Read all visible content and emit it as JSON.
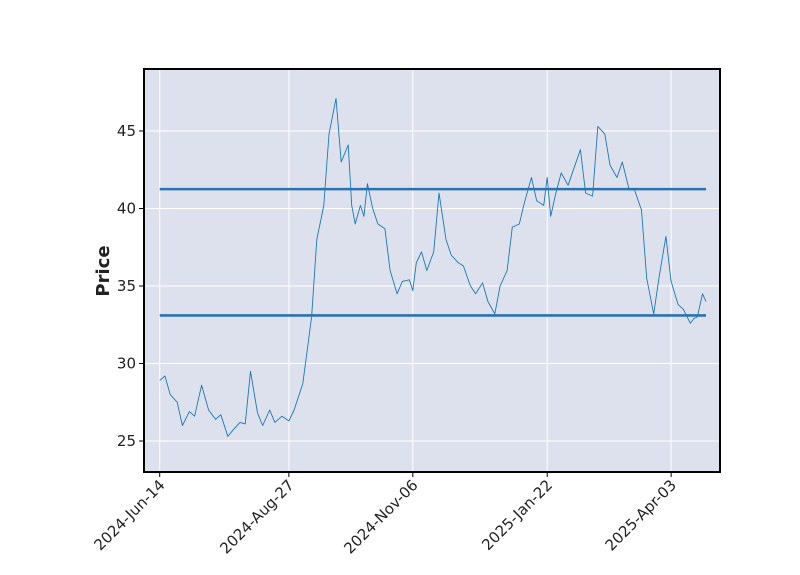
{
  "chart_data": {
    "type": "line",
    "title": "",
    "xlabel": "",
    "ylabel": "Price",
    "xlim": [
      "2024-06-05",
      "2025-05-01"
    ],
    "ylim": [
      23.0,
      49.0
    ],
    "x_ticks": [
      "2024-Jun-14",
      "2024-Aug-27",
      "2024-Nov-06",
      "2025-Jan-22",
      "2025-Apr-03"
    ],
    "y_ticks": [
      25,
      30,
      35,
      40,
      45
    ],
    "grid": true,
    "legend": "none",
    "colors": {
      "background": "#dce1ed",
      "grid": "#ffffff",
      "line": "#1f77b4",
      "hline": "#2c72b0"
    },
    "horizontal_lines": [
      {
        "y": 41.25,
        "x_start": "2024-06-14",
        "x_end": "2025-04-23"
      },
      {
        "y": 33.1,
        "x_start": "2024-06-14",
        "x_end": "2025-04-23"
      }
    ],
    "series": [
      {
        "x": [
          "2024-06-14",
          "2024-06-17",
          "2024-06-20",
          "2024-06-24",
          "2024-06-27",
          "2024-07-01",
          "2024-07-04",
          "2024-07-08",
          "2024-07-12",
          "2024-07-16",
          "2024-07-19",
          "2024-07-23",
          "2024-07-26",
          "2024-07-30",
          "2024-08-02",
          "2024-08-05",
          "2024-08-09",
          "2024-08-12",
          "2024-08-16",
          "2024-08-19",
          "2024-08-23",
          "2024-08-27",
          "2024-08-30",
          "2024-09-04",
          "2024-09-09",
          "2024-09-12",
          "2024-09-16",
          "2024-09-19",
          "2024-09-23",
          "2024-09-26",
          "2024-09-30",
          "2024-10-02",
          "2024-10-04",
          "2024-10-07",
          "2024-10-09",
          "2024-10-11",
          "2024-10-14",
          "2024-10-17",
          "2024-10-21",
          "2024-10-24",
          "2024-10-28",
          "2024-10-31",
          "2024-11-04",
          "2024-11-06",
          "2024-11-08",
          "2024-11-11",
          "2024-11-14",
          "2024-11-18",
          "2024-11-21",
          "2024-11-25",
          "2024-11-28",
          "2024-12-02",
          "2024-12-05",
          "2024-12-09",
          "2024-12-12",
          "2024-12-16",
          "2024-12-19",
          "2024-12-23",
          "2024-12-26",
          "2024-12-30",
          "2025-01-02",
          "2025-01-06",
          "2025-01-09",
          "2025-01-13",
          "2025-01-16",
          "2025-01-20",
          "2025-01-22",
          "2025-01-24",
          "2025-01-27",
          "2025-01-30",
          "2025-02-03",
          "2025-02-06",
          "2025-02-10",
          "2025-02-13",
          "2025-02-17",
          "2025-02-20",
          "2025-02-24",
          "2025-02-27",
          "2025-03-03",
          "2025-03-06",
          "2025-03-10",
          "2025-03-13",
          "2025-03-17",
          "2025-03-20",
          "2025-03-24",
          "2025-03-27",
          "2025-03-31",
          "2025-04-03",
          "2025-04-07",
          "2025-04-10",
          "2025-04-14",
          "2025-04-16",
          "2025-04-18",
          "2025-04-21",
          "2025-04-23"
        ],
        "y": [
          28.9,
          29.2,
          28.0,
          27.5,
          26.0,
          26.9,
          26.6,
          28.6,
          27.0,
          26.4,
          26.7,
          25.3,
          25.7,
          26.2,
          26.1,
          29.5,
          26.8,
          26.0,
          27.0,
          26.2,
          26.6,
          26.3,
          27.0,
          28.7,
          33.0,
          38.0,
          40.2,
          44.8,
          47.1,
          43.0,
          44.1,
          40.2,
          39.0,
          40.2,
          39.5,
          41.6,
          40.0,
          39.0,
          38.7,
          36.0,
          34.5,
          35.3,
          35.4,
          34.7,
          36.5,
          37.2,
          36.0,
          37.2,
          41.0,
          38.0,
          37.0,
          36.5,
          36.3,
          35.0,
          34.5,
          35.2,
          34.0,
          33.2,
          35.0,
          36.0,
          38.8,
          39.0,
          40.4,
          42.0,
          40.5,
          40.2,
          42.0,
          39.5,
          41.0,
          42.3,
          41.5,
          42.5,
          43.8,
          41.0,
          40.8,
          45.3,
          44.8,
          42.8,
          42.0,
          43.0,
          41.2,
          41.2,
          39.9,
          35.5,
          33.2,
          35.5,
          38.2,
          35.3,
          33.8,
          33.5,
          32.6,
          32.9,
          33.0,
          34.5,
          34.0
        ]
      }
    ]
  }
}
